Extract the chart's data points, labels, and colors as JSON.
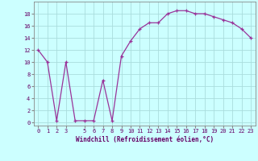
{
  "x": [
    0,
    1,
    2,
    3,
    4,
    5,
    6,
    7,
    8,
    9,
    10,
    11,
    12,
    13,
    14,
    15,
    16,
    17,
    18,
    19,
    20,
    21,
    22,
    23
  ],
  "y": [
    12,
    10,
    0.3,
    10,
    0.3,
    0.3,
    0.3,
    7,
    0.3,
    11,
    13.5,
    15.5,
    16.5,
    16.5,
    18,
    18.5,
    18.5,
    18,
    18,
    17.5,
    17,
    16.5,
    15.5,
    14
  ],
  "line_color": "#993399",
  "marker": "+",
  "marker_color": "#993399",
  "bg_color": "#ccffff",
  "grid_color": "#aadddd",
  "xlabel": "Windchill (Refroidissement éolien,°C)",
  "xlabel_color": "#660066",
  "tick_color": "#660066",
  "spine_color": "#888888",
  "ylim": [
    -0.5,
    20
  ],
  "xlim": [
    -0.5,
    23.5
  ],
  "yticks": [
    0,
    2,
    4,
    6,
    8,
    10,
    12,
    14,
    16,
    18
  ],
  "xticks": [
    0,
    1,
    2,
    3,
    5,
    6,
    7,
    8,
    9,
    10,
    11,
    12,
    13,
    14,
    15,
    16,
    17,
    18,
    19,
    20,
    21,
    22,
    23
  ],
  "tick_fontsize": 5,
  "xlabel_fontsize": 5.5,
  "line_width": 0.9,
  "marker_size": 3
}
